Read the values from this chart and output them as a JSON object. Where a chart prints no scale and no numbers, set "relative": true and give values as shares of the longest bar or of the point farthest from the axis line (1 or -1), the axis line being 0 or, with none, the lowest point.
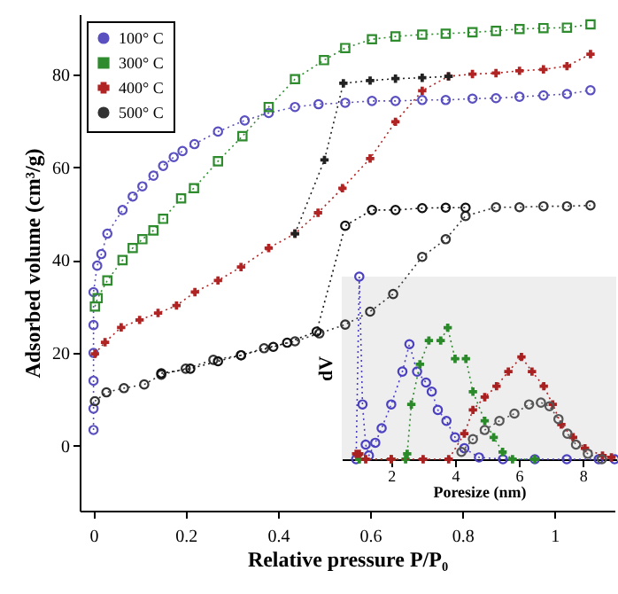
{
  "chart_data": [
    {
      "type": "line",
      "xlabel": "Relative pressure P/P₀",
      "ylabel": "Adsorbed volume (cm³/g)",
      "xlim": [
        -0.03,
        1.13
      ],
      "ylim": [
        -14,
        93
      ],
      "xticks": [
        0,
        0.2,
        0.4,
        0.6,
        0.8,
        1
      ],
      "yticks": [
        0,
        20,
        40,
        60,
        80
      ],
      "legend": "top left",
      "line_style": "dotted",
      "grid": false,
      "series": [
        {
          "name": "100° C",
          "color": "#5a50c0",
          "marker": "circle",
          "x": [
            0,
            0,
            0,
            0,
            0,
            0,
            0.008,
            0.017,
            0.03,
            0.063,
            0.085,
            0.106,
            0.13,
            0.151,
            0.174,
            0.193,
            0.219,
            0.27,
            0.328,
            0.38,
            0.437,
            0.488,
            0.546,
            0.604,
            0.655,
            0.713,
            0.764,
            0.822,
            0.873,
            0.924,
            0.976,
            1.027,
            1.078
          ],
          "values": [
            3.4,
            8,
            14,
            20,
            26,
            33.1,
            38.8,
            41.3,
            45.7,
            50.8,
            53.7,
            55.9,
            58.2,
            60.3,
            62.2,
            63.5,
            65,
            67.7,
            70.1,
            71.7,
            73,
            73.6,
            73.9,
            74.3,
            74.3,
            74.5,
            74.5,
            74.8,
            74.9,
            75.2,
            75.5,
            75.8,
            76.6
          ]
        },
        {
          "name": "300° C",
          "color": "#2e8b2e",
          "marker": "square",
          "x": [
            0.003,
            0.009,
            0.03,
            0.063,
            0.085,
            0.106,
            0.13,
            0.151,
            0.19,
            0.218,
            0.27,
            0.323,
            0.38,
            0.437,
            0.5,
            0.546,
            0.604,
            0.655,
            0.713,
            0.764,
            0.822,
            0.873,
            0.924,
            0.976,
            1.027,
            1.078
          ],
          "values": [
            30,
            31.8,
            35.6,
            40,
            42.6,
            44.5,
            46.4,
            48.9,
            53.3,
            55.5,
            61.3,
            66.7,
            73,
            79,
            83.1,
            85.7,
            87.6,
            88.2,
            88.6,
            88.8,
            89.1,
            89.4,
            89.8,
            90,
            90.1,
            90.8
          ]
        },
        {
          "name": "400° C",
          "color": "#b02424",
          "marker": "cross",
          "x": [
            0.003,
            0.025,
            0.06,
            0.1,
            0.14,
            0.18,
            0.22,
            0.27,
            0.32,
            0.38,
            0.437,
            0.487,
            0.54,
            0.6,
            0.655,
            0.713,
            0.77,
            0.822,
            0.873,
            0.924,
            0.976,
            1.027,
            1.078
          ],
          "values": [
            19.8,
            22.3,
            25.5,
            27.1,
            28.6,
            30.2,
            33.1,
            35.6,
            38.5,
            42.6,
            45.7,
            50.2,
            55.5,
            61.9,
            69.8,
            76.5,
            79.6,
            80.1,
            80.3,
            80.8,
            81.1,
            81.8,
            84.4
          ]
        },
        {
          "name": "500° C",
          "color": "#333333",
          "marker": "circle",
          "x": [
            0.003,
            0.028,
            0.066,
            0.11,
            0.147,
            0.2,
            0.26,
            0.32,
            0.37,
            0.437,
            0.49,
            0.546,
            0.6,
            0.65,
            0.713,
            0.764,
            0.807,
            0.873,
            0.924,
            0.976,
            1.027,
            1.078
          ],
          "values": [
            9.6,
            11.5,
            12.4,
            13.2,
            15.3,
            16.6,
            18.5,
            19.5,
            21,
            22.5,
            24.2,
            26.1,
            28.9,
            32.7,
            40.7,
            44.5,
            49.5,
            51.4,
            51.4,
            51.6,
            51.6,
            51.8
          ]
        },
        {
          "color": "#222222",
          "marker": "cross",
          "x": [
            0.437,
            0.501,
            0.542,
            0.6,
            0.655,
            0.713,
            0.77
          ],
          "values": [
            45.7,
            61.6,
            78.1,
            78.7,
            79.1,
            79.3,
            79.6
          ]
        },
        {
          "color": "#111111",
          "marker": "circle",
          "x": [
            0.147,
            0.21,
            0.27,
            0.32,
            0.39,
            0.42,
            0.484,
            0.546,
            0.604,
            0.655,
            0.713,
            0.764,
            0.807
          ],
          "values": [
            15.6,
            16.6,
            18.2,
            19.5,
            21.3,
            22.2,
            24.6,
            47.4,
            50.8,
            50.8,
            51.2,
            51.3,
            51.3
          ]
        }
      ]
    },
    {
      "type": "line",
      "xlabel": "Poresize (nm)",
      "ylabel": "dV",
      "relative": true,
      "xlim": [
        0.45,
        9.05
      ],
      "xticks": [
        2,
        4,
        6,
        8
      ],
      "tick_labels": "x",
      "line_style": "dotted",
      "grid": false,
      "series": [
        {
          "color": "#4a40c0",
          "marker": "circle",
          "x": [
            0.9,
            1.0,
            1.1,
            1.2,
            1.3,
            1.5,
            1.7,
            2.0,
            2.35,
            2.57,
            2.81,
            3.09,
            3.27,
            3.46,
            3.73,
            4.0,
            4.29,
            4.75,
            5.5,
            6.5,
            7.5,
            8.5,
            9.0
          ],
          "values": [
            0,
            1,
            0.3,
            0.08,
            0.02,
            0.09,
            0.17,
            0.3,
            0.48,
            0.63,
            0.48,
            0.42,
            0.37,
            0.27,
            0.21,
            0.12,
            0.06,
            0.01,
            0,
            0,
            0,
            0,
            0
          ]
        },
        {
          "color": "#2a8a2a",
          "marker": "cross",
          "x": [
            1.0,
            2.0,
            2.45,
            2.5,
            2.63,
            2.9,
            3.18,
            3.55,
            3.77,
            4.0,
            4.34,
            4.56,
            4.93,
            5.21,
            5.49,
            5.8,
            6.5
          ],
          "values": [
            0,
            0,
            0,
            0.03,
            0.3,
            0.52,
            0.65,
            0.65,
            0.72,
            0.55,
            0.55,
            0.37,
            0.21,
            0.12,
            0.04,
            0,
            0
          ]
        },
        {
          "color": "#a82020",
          "marker": "cross",
          "x": [
            0.9,
            1.0,
            1.2,
            2.0,
            3.0,
            3.8,
            4.29,
            4.56,
            4.93,
            5.3,
            5.67,
            6.08,
            6.41,
            6.78,
            7.06,
            7.33,
            7.7,
            8.07,
            8.62,
            8.9
          ],
          "values": [
            0.03,
            0.03,
            0,
            0,
            0,
            0,
            0.14,
            0.27,
            0.34,
            0.4,
            0.48,
            0.56,
            0.48,
            0.4,
            0.3,
            0.19,
            0.12,
            0.06,
            0.02,
            0.01
          ]
        },
        {
          "color": "#555555",
          "marker": "circle",
          "x": [
            4.2,
            4.56,
            4.93,
            5.39,
            5.86,
            6.32,
            6.69,
            6.96,
            7.24,
            7.52,
            7.79,
            8.16,
            8.6
          ],
          "values": [
            0.04,
            0.11,
            0.16,
            0.21,
            0.25,
            0.3,
            0.31,
            0.29,
            0.22,
            0.14,
            0.08,
            0.03,
            0
          ]
        }
      ]
    }
  ]
}
